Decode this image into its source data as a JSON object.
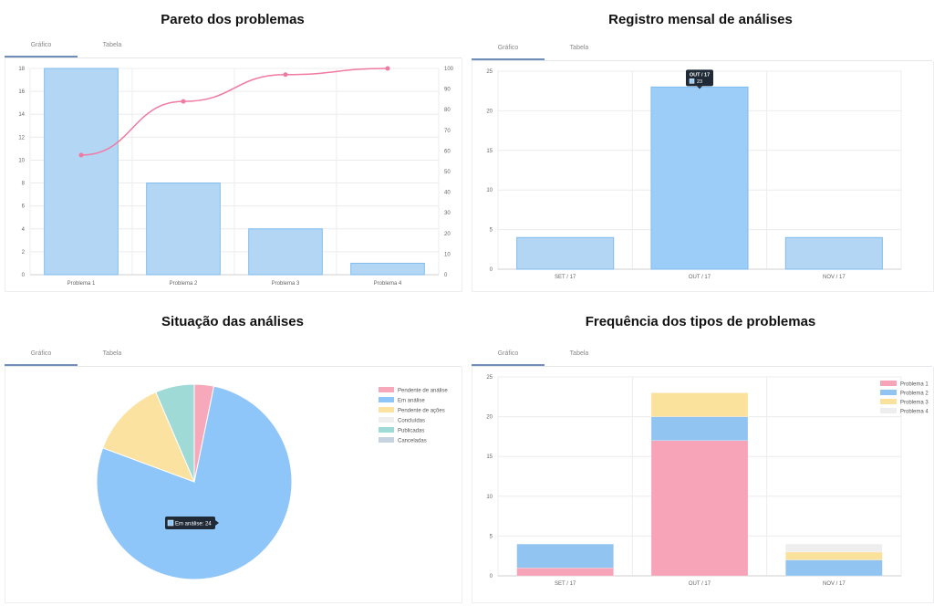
{
  "panels": {
    "pareto": {
      "title": "Pareto dos problemas",
      "tabs": [
        "Gráfico",
        "Tabela"
      ]
    },
    "monthly": {
      "title": "Registro mensal de análises",
      "tabs": [
        "Gráfico",
        "Tabela"
      ]
    },
    "status": {
      "title": "Situação das análises",
      "tabs": [
        "Gráfico",
        "Tabela"
      ]
    },
    "frequency": {
      "title": "Frequência dos tipos de problemas",
      "tabs": [
        "Gráfico",
        "Tabela"
      ]
    }
  },
  "chart_data": [
    {
      "id": "pareto",
      "type": "bar",
      "categories": [
        "Problema 1",
        "Problema 2",
        "Problema 3",
        "Problema 4"
      ],
      "values": [
        18,
        8,
        4,
        1
      ],
      "line": [
        58,
        84,
        97,
        100
      ],
      "ylim": [
        0,
        18
      ],
      "yticks": [
        0,
        2,
        4,
        6,
        8,
        10,
        12,
        14,
        16,
        18
      ],
      "y2lim": [
        0,
        100
      ],
      "y2ticks": [
        0,
        10,
        20,
        30,
        40,
        50,
        60,
        70,
        80,
        90,
        100
      ],
      "colors": {
        "bar": "#b3d6f5",
        "bar_border": "#7fbcee",
        "line": "#f07aa0"
      }
    },
    {
      "id": "monthly",
      "type": "bar",
      "categories": [
        "SET / 17",
        "OUT / 17",
        "NOV / 17"
      ],
      "values": [
        4,
        23,
        4
      ],
      "ylim": [
        0,
        25
      ],
      "yticks": [
        0,
        5,
        10,
        15,
        20,
        25
      ],
      "tooltip": {
        "title": "OUT / 17",
        "value": "23",
        "index": 1
      },
      "colors": {
        "bar": "#b3d6f5",
        "bar_active": "#9ccdf9",
        "bar_border": "#7fbcee"
      }
    },
    {
      "id": "status",
      "type": "pie",
      "labels": [
        "Pendente de análise",
        "Em análise",
        "Pendente de ações",
        "Concluídas",
        "Publicadas",
        "Canceladas"
      ],
      "values": [
        1,
        24,
        4,
        0,
        2,
        0
      ],
      "colors": [
        "#f7a8ba",
        "#8ec6f9",
        "#fbe2a0",
        "#eeeeee",
        "#9fdad6",
        "#c6d3e0"
      ],
      "legend": "top-right",
      "tooltip": {
        "text": "Em análise: 24",
        "index": 1
      }
    },
    {
      "id": "frequency",
      "type": "bar",
      "stacked": true,
      "categories": [
        "SET / 17",
        "OUT / 17",
        "NOV / 17"
      ],
      "series": [
        {
          "name": "Problema 1",
          "values": [
            1,
            17,
            0
          ],
          "color": "#f7a3b8"
        },
        {
          "name": "Problema 2",
          "values": [
            3,
            3,
            2
          ],
          "color": "#92c4f2"
        },
        {
          "name": "Problema 3",
          "values": [
            0,
            3,
            1
          ],
          "color": "#fae19c"
        },
        {
          "name": "Problema 4",
          "values": [
            0,
            0,
            1
          ],
          "color": "#eeeeee"
        }
      ],
      "ylim": [
        0,
        25
      ],
      "yticks": [
        0,
        5,
        10,
        15,
        20,
        25
      ],
      "legend": "top-right"
    }
  ]
}
